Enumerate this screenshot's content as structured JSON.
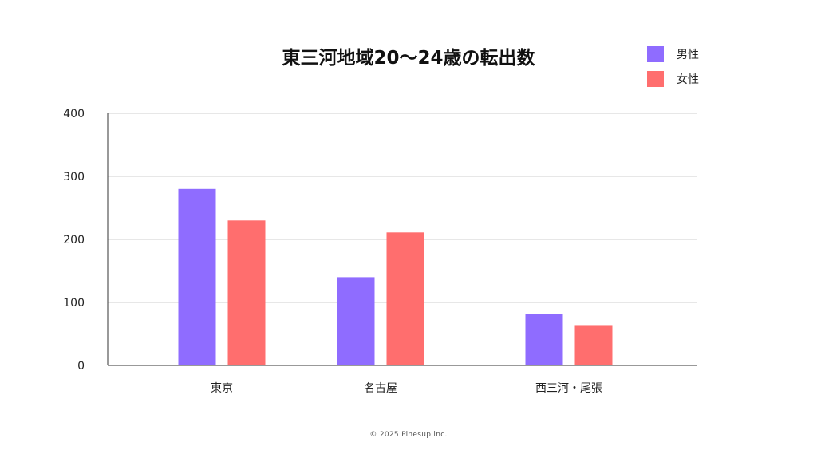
{
  "chart_data": {
    "type": "bar",
    "title": "東三河地域20～24歳の転出数",
    "categories": [
      "東京",
      "名古屋",
      "西三河・尾張"
    ],
    "series": [
      {
        "name": "男性",
        "values": [
          280,
          140,
          82
        ],
        "color": "#8f6cff"
      },
      {
        "name": "女性",
        "values": [
          230,
          211,
          64
        ],
        "color": "#ff6e6e"
      }
    ],
    "xlabel": "",
    "ylabel": "",
    "ylim": [
      0,
      400
    ],
    "yticks": [
      0,
      100,
      200,
      300,
      400
    ],
    "grid": true,
    "legend_position": "top-right"
  },
  "footer": {
    "copyright": "© 2025 Pinesup inc."
  }
}
